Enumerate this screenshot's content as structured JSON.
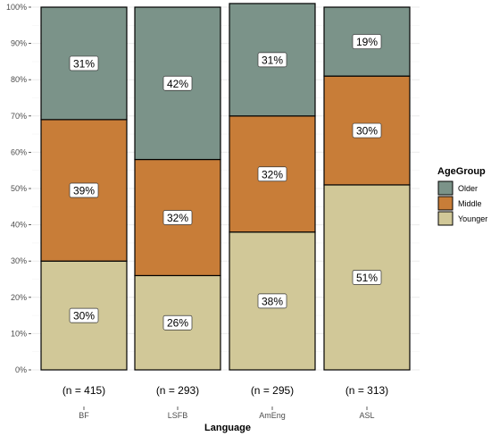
{
  "chart_data": {
    "type": "bar",
    "stacked": true,
    "categories": [
      "BF",
      "LSFB",
      "AmEng",
      "ASL"
    ],
    "n_labels": [
      "(n = 415)",
      "(n = 293)",
      "(n = 295)",
      "(n = 313)"
    ],
    "xlabel": "Language",
    "ylabel": "",
    "ylim": [
      0,
      100
    ],
    "y_ticks": [
      "0%",
      "10%",
      "20%",
      "30%",
      "40%",
      "50%",
      "60%",
      "70%",
      "80%",
      "90%",
      "100%"
    ],
    "grid": true,
    "legend": {
      "title": "AgeGroup",
      "position": "right"
    },
    "series": [
      {
        "name": "Younger",
        "color": "#d1c898",
        "values": [
          30,
          26,
          38,
          51
        ],
        "labels": [
          "30%",
          "26%",
          "38%",
          "51%"
        ]
      },
      {
        "name": "Middle",
        "color": "#c87d38",
        "values": [
          39,
          32,
          32,
          30
        ],
        "labels": [
          "39%",
          "32%",
          "32%",
          "30%"
        ]
      },
      {
        "name": "Older",
        "color": "#7b9389",
        "values": [
          31,
          42,
          31,
          19
        ],
        "labels": [
          "31%",
          "42%",
          "31%",
          "19%"
        ]
      }
    ],
    "legend_order": [
      "Older",
      "Middle",
      "Younger"
    ]
  }
}
